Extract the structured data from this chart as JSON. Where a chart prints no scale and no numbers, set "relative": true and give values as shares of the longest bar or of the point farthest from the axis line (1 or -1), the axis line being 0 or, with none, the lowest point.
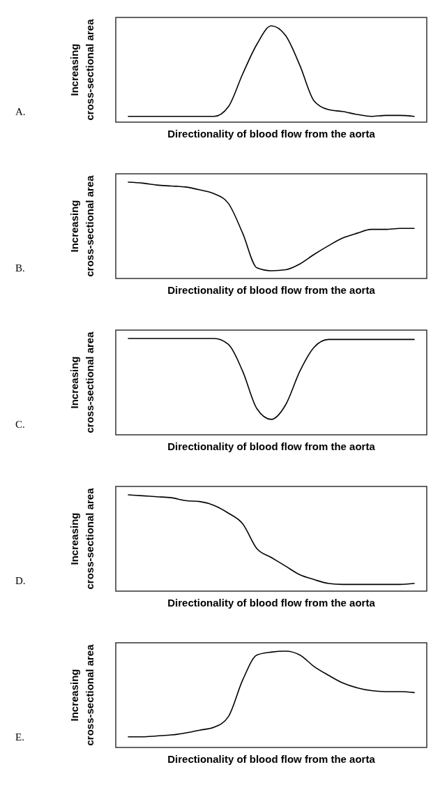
{
  "chart_data": [
    {
      "type": "line",
      "annotations": [
        "A."
      ],
      "xlabel": "Directionality of blood flow from the aorta",
      "ylabel": "Increasing\ncross-sectional area",
      "relative": true,
      "color": "#000000",
      "categories": [
        null,
        null,
        null,
        null,
        null,
        null,
        null,
        null,
        null,
        null,
        null,
        null,
        null,
        null,
        null,
        null,
        null,
        null,
        null,
        null,
        null
      ],
      "values": [
        0.06,
        0.06,
        0.06,
        0.06,
        0.06,
        0.06,
        0.06,
        0.16,
        0.5,
        0.81,
        1,
        0.9,
        0.59,
        0.22,
        0.13,
        0.11,
        0.08,
        0.06,
        0.07,
        0.07,
        0.06
      ]
    },
    {
      "type": "line",
      "annotations": [
        "B."
      ],
      "xlabel": "Directionality of blood flow from the aorta",
      "ylabel": "Increasing\ncross-sectional area",
      "relative": true,
      "color": "#000000",
      "categories": [
        null,
        null,
        null,
        null,
        null,
        null,
        null,
        null,
        null,
        null,
        null,
        null,
        null,
        null,
        null,
        null,
        null,
        null,
        null,
        null,
        null
      ],
      "values": [
        1,
        0.99,
        0.97,
        0.96,
        0.95,
        0.92,
        0.88,
        0.78,
        0.47,
        0.11,
        0.08,
        0.09,
        0.15,
        0.25,
        0.34,
        0.42,
        0.47,
        0.51,
        0.51,
        0.52,
        0.52
      ]
    },
    {
      "type": "line",
      "annotations": [
        "C."
      ],
      "xlabel": "Directionality of blood flow from the aorta",
      "ylabel": "Increasing\ncross-sectional area",
      "relative": true,
      "color": "#000000",
      "categories": [
        null,
        null,
        null,
        null,
        null,
        null,
        null,
        null,
        null,
        null,
        null,
        null,
        null,
        null,
        null,
        null,
        null,
        null,
        null,
        null,
        null
      ],
      "values": [
        1,
        1,
        1,
        1,
        1,
        1,
        1,
        0.94,
        0.66,
        0.27,
        0.16,
        0.31,
        0.66,
        0.91,
        0.99,
        0.99,
        0.99,
        0.99,
        0.99,
        0.99,
        0.99
      ]
    },
    {
      "type": "line",
      "annotations": [
        "D."
      ],
      "xlabel": "Directionality of blood flow from the aorta",
      "ylabel": "Increasing\ncross-sectional area",
      "relative": true,
      "color": "#000000",
      "categories": [
        null,
        null,
        null,
        null,
        null,
        null,
        null,
        null,
        null,
        null,
        null,
        null,
        null,
        null,
        null,
        null,
        null,
        null,
        null,
        null,
        null
      ],
      "values": [
        1,
        0.99,
        0.98,
        0.97,
        0.94,
        0.93,
        0.89,
        0.81,
        0.7,
        0.44,
        0.35,
        0.26,
        0.17,
        0.12,
        0.08,
        0.07,
        0.07,
        0.07,
        0.07,
        0.07,
        0.08
      ]
    },
    {
      "type": "line",
      "annotations": [
        "E."
      ],
      "xlabel": "Directionality of blood flow from the aorta",
      "ylabel": "Increasing\ncross-sectional area",
      "relative": true,
      "color": "#000000",
      "categories": [
        null,
        null,
        null,
        null,
        null,
        null,
        null,
        null,
        null,
        null,
        null,
        null,
        null,
        null,
        null,
        null,
        null,
        null,
        null,
        null,
        null
      ],
      "values": [
        0.11,
        0.11,
        0.12,
        0.13,
        0.15,
        0.18,
        0.21,
        0.32,
        0.7,
        0.96,
        0.99,
        1,
        0.96,
        0.84,
        0.75,
        0.67,
        0.62,
        0.59,
        0.58,
        0.58,
        0.57
      ]
    }
  ]
}
